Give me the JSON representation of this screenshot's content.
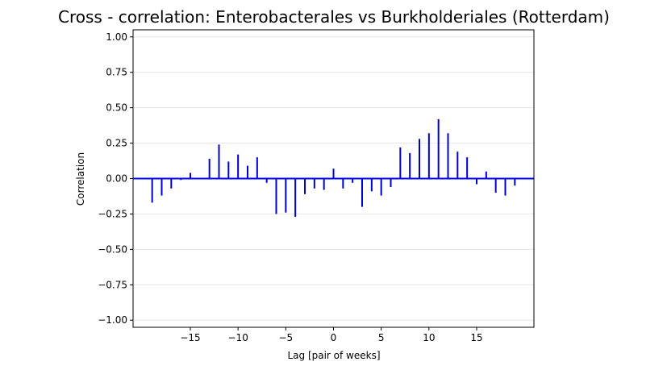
{
  "chart_data": {
    "type": "bar",
    "title": "Cross - correlation: Enterobacterales vs Burkholderiales (Rotterdam)",
    "xlabel": "Lag [pair of weeks]",
    "ylabel": "Correlation",
    "xlim": [
      -21,
      21
    ],
    "ylim": [
      -1.05,
      1.05
    ],
    "x_ticks": [
      -15,
      -10,
      -5,
      0,
      5,
      10,
      15
    ],
    "x_tick_labels": [
      "−15",
      "−10",
      "−5",
      "0",
      "5",
      "10",
      "15"
    ],
    "y_ticks": [
      -1.0,
      -0.75,
      -0.5,
      -0.25,
      0.0,
      0.25,
      0.5,
      0.75,
      1.0
    ],
    "y_tick_labels": [
      "−1.00",
      "−0.75",
      "−0.50",
      "−0.25",
      "0.00",
      "0.25",
      "0.50",
      "0.75",
      "1.00"
    ],
    "grid": "horizontal",
    "color": "#0000cc",
    "baseline_color": "#0000ff",
    "lags": [
      -19,
      -18,
      -17,
      -16,
      -15,
      -14,
      -13,
      -12,
      -11,
      -10,
      -9,
      -8,
      -7,
      -6,
      -5,
      -4,
      -3,
      -2,
      -1,
      0,
      1,
      2,
      3,
      4,
      5,
      6,
      7,
      8,
      9,
      10,
      11,
      12,
      13,
      14,
      15,
      16,
      17,
      18,
      19
    ],
    "values": [
      -0.17,
      -0.12,
      -0.07,
      -0.01,
      0.04,
      0.0,
      0.14,
      0.24,
      0.12,
      0.17,
      0.09,
      0.15,
      -0.03,
      -0.25,
      -0.24,
      -0.27,
      -0.11,
      -0.07,
      -0.08,
      0.07,
      -0.07,
      -0.03,
      -0.2,
      -0.09,
      -0.12,
      -0.06,
      0.22,
      0.18,
      0.28,
      0.32,
      0.42,
      0.32,
      0.19,
      0.15,
      -0.04,
      0.05,
      -0.1,
      -0.12,
      -0.05
    ]
  }
}
